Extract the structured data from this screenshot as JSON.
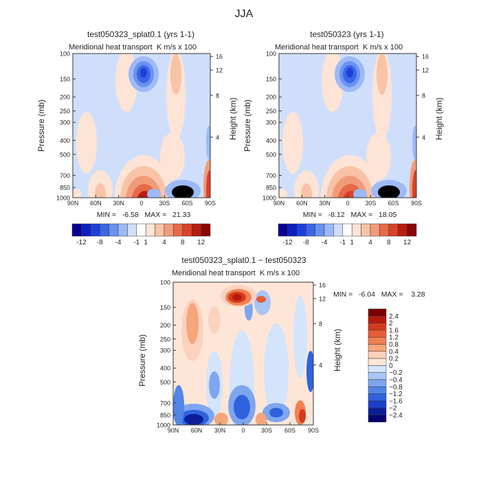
{
  "page": {
    "title": "JJA"
  },
  "chart_data": [
    {
      "type": "heatmap",
      "title": "test050323_splat0.1 (yrs 1-1)",
      "subtitle": "Meridional heat transport",
      "units": "K m/s x 100",
      "xlabel": "",
      "ylabel": "Pressure (mb)",
      "ylabel_right": "Height (km)",
      "x_ticks": [
        "90N",
        "60N",
        "30N",
        "0",
        "30S",
        "60S",
        "90S"
      ],
      "y_ticks": [
        "100",
        "150",
        "200",
        "250",
        "300",
        "400",
        "500",
        "700",
        "850",
        "1000"
      ],
      "y_ticks_right": [
        "16",
        "12",
        "8",
        "4"
      ],
      "stats": "MIN =   -6.58   MAX =   21.33",
      "colorbar_labels": [
        "-12",
        "-8",
        "-4",
        "-1",
        "1",
        "4",
        "8",
        "12"
      ],
      "features": [
        {
          "lat": 1,
          "p": 205,
          "value": -6.5
        },
        {
          "lat": -3,
          "p": 950,
          "value": 21
        },
        {
          "lat": -50,
          "p": 950,
          "value": -5
        },
        {
          "lat": -88,
          "p": 900,
          "value": 10
        }
      ]
    },
    {
      "type": "heatmap",
      "title": "test050323 (yrs 1-1)",
      "subtitle": "Meridional heat transport",
      "units": "K m/s x 100",
      "xlabel": "",
      "ylabel": "Pressure (mb)",
      "ylabel_right": "Height (km)",
      "x_ticks": [
        "90N",
        "60N",
        "30N",
        "0",
        "30S",
        "60S",
        "90S"
      ],
      "y_ticks": [
        "100",
        "150",
        "200",
        "250",
        "300",
        "400",
        "500",
        "700",
        "850",
        "1000"
      ],
      "y_ticks_right": [
        "16",
        "12",
        "8",
        "4"
      ],
      "stats": "MIN =   -8.12   MAX =   18.05",
      "colorbar_labels": [
        "-12",
        "-8",
        "-4",
        "-1",
        "1",
        "4",
        "8",
        "12"
      ],
      "features": [
        {
          "lat": 0,
          "p": 205,
          "value": -8
        },
        {
          "lat": -3,
          "p": 950,
          "value": 18
        },
        {
          "lat": -45,
          "p": 950,
          "value": -4
        },
        {
          "lat": -88,
          "p": 900,
          "value": 10
        }
      ]
    },
    {
      "type": "heatmap",
      "title": "test050323_splat0.1 − test050323",
      "subtitle": "Meridional heat transport",
      "units": "K m/s x 100",
      "xlabel": "",
      "ylabel": "Pressure (mb)",
      "ylabel_right": "Height (km)",
      "x_ticks": [
        "90N",
        "60N",
        "30N",
        "0",
        "30S",
        "60S",
        "90S"
      ],
      "y_ticks": [
        "100",
        "150",
        "200",
        "250",
        "300",
        "400",
        "500",
        "700",
        "850",
        "1000"
      ],
      "y_ticks_right": [
        "16",
        "12",
        "8",
        "4"
      ],
      "stats": "MIN =   -6.04   MAX =    3.28",
      "colorbar_labels": [
        "2.4",
        "2",
        "1.6",
        "1.2",
        "0.8",
        "0.4",
        "0.2",
        "0",
        "−0.2",
        "−0.4",
        "−0.8",
        "−1.2",
        "−1.6",
        "−2",
        "−2.4"
      ],
      "features": [
        {
          "lat": 0,
          "p": 180,
          "value": 3.2
        },
        {
          "lat": 70,
          "p": 970,
          "value": -6
        },
        {
          "lat": 5,
          "p": 900,
          "value": -3
        }
      ]
    }
  ],
  "colors": {
    "scale_a": [
      "#08008f",
      "#0c1fbf",
      "#1e40d8",
      "#3a66e6",
      "#6a92f0",
      "#9dbaf7",
      "#cfdffb",
      "#ffffff",
      "#fde4d6",
      "#f8c3a6",
      "#f29b78",
      "#e86a48",
      "#d9412a",
      "#b81d12",
      "#8a0600"
    ],
    "scale_b": [
      "#7a0000",
      "#b51b0c",
      "#d63a1e",
      "#e65d36",
      "#f08152",
      "#f5a67b",
      "#fbd2bd",
      "#fde6d8",
      "#d4e4fb",
      "#a9c5f5",
      "#7ea6ef",
      "#5185e8",
      "#2f62dd",
      "#1a3fc8",
      "#0b1e99",
      "#05006e"
    ]
  }
}
